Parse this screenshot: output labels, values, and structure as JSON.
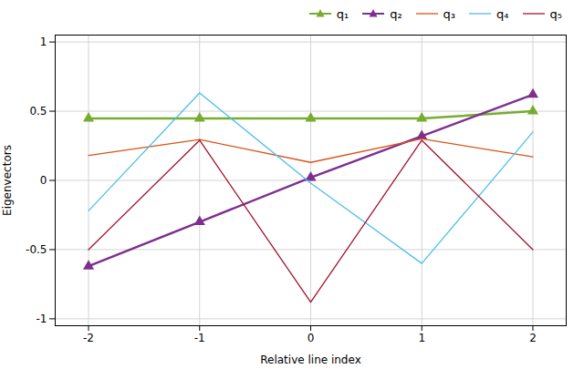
{
  "chart_data": {
    "type": "line",
    "xlabel": "Relative line index",
    "ylabel": "Eigenvectors",
    "x": [
      -2,
      -1,
      0,
      1,
      2
    ],
    "xlim": [
      -2.3,
      2.3
    ],
    "ylim": [
      -1.05,
      1.05
    ],
    "xticks": [
      -2,
      -1,
      0,
      1,
      2
    ],
    "yticks": [
      -1,
      -0.5,
      0,
      0.5,
      1
    ],
    "grid": true,
    "legend": "upper right",
    "series": [
      {
        "name": "q₁",
        "color": "#77ac30",
        "marker": "triangle",
        "values": [
          0.447,
          0.447,
          0.447,
          0.447,
          0.5
        ]
      },
      {
        "name": "q₂",
        "color": "#7e2f8e",
        "marker": "triangle",
        "values": [
          -0.62,
          -0.3,
          0.02,
          0.32,
          0.62
        ]
      },
      {
        "name": "q₃",
        "color": "#d95319",
        "values": [
          0.18,
          0.295,
          0.13,
          0.3,
          0.17
        ]
      },
      {
        "name": "q₄",
        "color": "#4dbeee",
        "values": [
          -0.22,
          0.632,
          -0.02,
          -0.6,
          0.35
        ]
      },
      {
        "name": "q₅",
        "color": "#a2142f",
        "values": [
          -0.5,
          0.29,
          -0.88,
          0.29,
          -0.5
        ]
      }
    ]
  }
}
